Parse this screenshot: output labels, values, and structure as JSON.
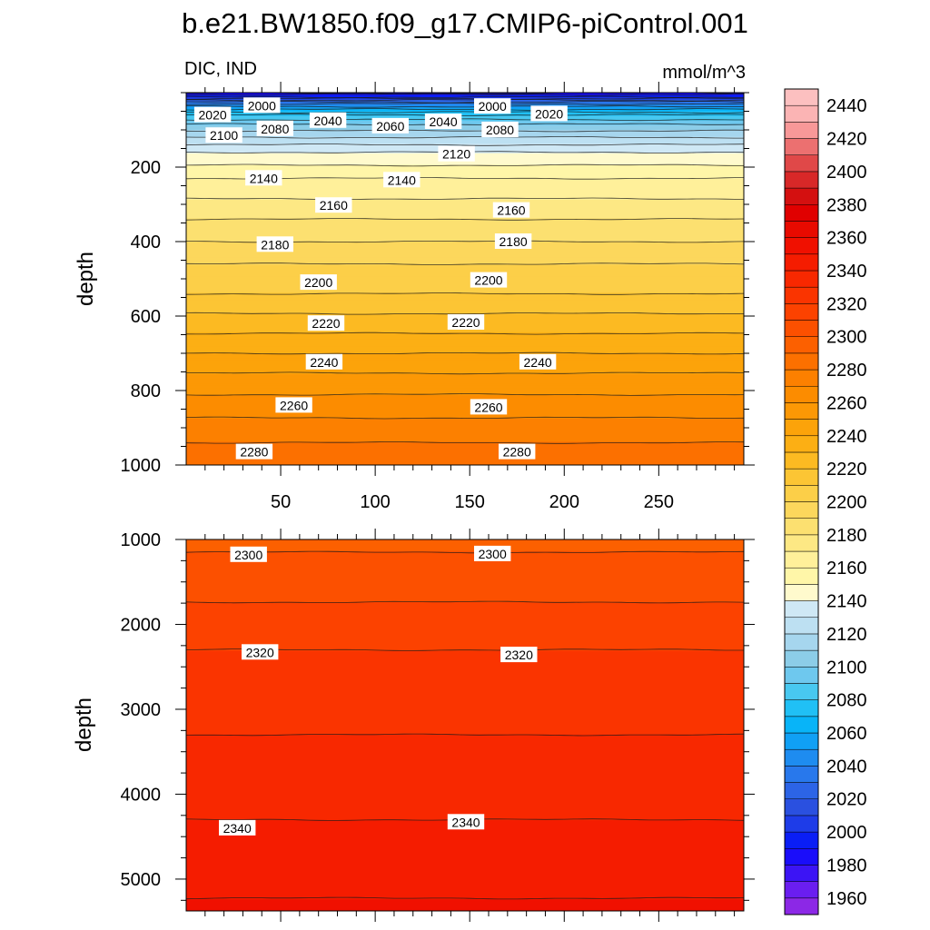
{
  "chart_data": {
    "type": "contour",
    "title": "b.e21.BW1850.f09_g17.CMIP6-piControl.001",
    "left_string": "DIC, IND",
    "right_string": "mmol/m^3",
    "xlim": [
      0,
      295
    ],
    "x_ticks": [
      "50",
      "100",
      "150",
      "200",
      "250"
    ],
    "x_tick_values": [
      50,
      100,
      150,
      200,
      250
    ],
    "panels": [
      {
        "name": "upper",
        "ylabel": "depth",
        "ylim": [
          0,
          1000
        ],
        "y_ticks": [
          "200",
          "400",
          "600",
          "800",
          "1000"
        ],
        "y_tick_values": [
          200,
          400,
          600,
          800,
          1000
        ],
        "profile": [
          [
            0,
            1975
          ],
          [
            5,
            1990
          ],
          [
            12,
            2000
          ],
          [
            20,
            2020
          ],
          [
            30,
            2040
          ],
          [
            45,
            2060
          ],
          [
            60,
            2080
          ],
          [
            85,
            2100
          ],
          [
            120,
            2120
          ],
          [
            160,
            2140
          ],
          [
            230,
            2160
          ],
          [
            340,
            2180
          ],
          [
            460,
            2200
          ],
          [
            540,
            2210
          ],
          [
            620,
            2225
          ],
          [
            700,
            2240
          ],
          [
            780,
            2255
          ],
          [
            860,
            2268
          ],
          [
            940,
            2280
          ],
          [
            1000,
            2288
          ]
        ],
        "contour_labels": [
          {
            "text": "2000",
            "x": 40,
            "y": 35
          },
          {
            "text": "2020",
            "x": 14,
            "y": 60
          },
          {
            "text": "2040",
            "x": 75,
            "y": 75
          },
          {
            "text": "2060",
            "x": 108,
            "y": 90
          },
          {
            "text": "2040",
            "x": 136,
            "y": 78
          },
          {
            "text": "2000",
            "x": 162,
            "y": 37
          },
          {
            "text": "2020",
            "x": 192,
            "y": 57
          },
          {
            "text": "2100",
            "x": 20,
            "y": 115
          },
          {
            "text": "2080",
            "x": 47,
            "y": 97
          },
          {
            "text": "2080",
            "x": 166,
            "y": 100
          },
          {
            "text": "2120",
            "x": 143,
            "y": 165
          },
          {
            "text": "2140",
            "x": 41,
            "y": 230
          },
          {
            "text": "2140",
            "x": 114,
            "y": 235
          },
          {
            "text": "2160",
            "x": 78,
            "y": 303
          },
          {
            "text": "2160",
            "x": 172,
            "y": 316
          },
          {
            "text": "2180",
            "x": 47,
            "y": 408
          },
          {
            "text": "2180",
            "x": 173,
            "y": 400
          },
          {
            "text": "2200",
            "x": 70,
            "y": 510
          },
          {
            "text": "2200",
            "x": 160,
            "y": 504
          },
          {
            "text": "2220",
            "x": 74,
            "y": 620
          },
          {
            "text": "2220",
            "x": 148,
            "y": 617
          },
          {
            "text": "2240",
            "x": 73,
            "y": 724
          },
          {
            "text": "2240",
            "x": 186,
            "y": 724
          },
          {
            "text": "2260",
            "x": 57,
            "y": 840
          },
          {
            "text": "2260",
            "x": 160,
            "y": 845
          },
          {
            "text": "2280",
            "x": 36,
            "y": 965
          },
          {
            "text": "2280",
            "x": 175,
            "y": 965
          }
        ]
      },
      {
        "name": "lower",
        "ylabel": "depth",
        "ylim": [
          1000,
          5375
        ],
        "y_ticks": [
          "1000",
          "2000",
          "3000",
          "4000",
          "5000"
        ],
        "y_tick_values": [
          1000,
          2000,
          3000,
          4000,
          5000
        ],
        "profile": [
          [
            1000,
            2292
          ],
          [
            1150,
            2300
          ],
          [
            1400,
            2304
          ],
          [
            2300,
            2320
          ],
          [
            3300,
            2330
          ],
          [
            4300,
            2340
          ],
          [
            5000,
            2347
          ],
          [
            5375,
            2352
          ]
        ],
        "contour_labels": [
          {
            "text": "2300",
            "x": 33,
            "y": 1180
          },
          {
            "text": "2300",
            "x": 162,
            "y": 1170
          },
          {
            "text": "2320",
            "x": 39,
            "y": 2330
          },
          {
            "text": "2320",
            "x": 176,
            "y": 2360
          },
          {
            "text": "2340",
            "x": 27,
            "y": 4400
          },
          {
            "text": "2340",
            "x": 148,
            "y": 4330
          }
        ]
      }
    ],
    "colorbar": {
      "levels": [
        1950,
        1960,
        1970,
        1980,
        1990,
        2000,
        2010,
        2020,
        2030,
        2040,
        2050,
        2060,
        2070,
        2080,
        2090,
        2100,
        2110,
        2120,
        2130,
        2140,
        2150,
        2160,
        2170,
        2180,
        2190,
        2200,
        2210,
        2220,
        2230,
        2240,
        2250,
        2260,
        2270,
        2280,
        2290,
        2300,
        2310,
        2320,
        2330,
        2340,
        2350,
        2360,
        2370,
        2380,
        2390,
        2400,
        2410,
        2420,
        2430,
        2440,
        2450
      ],
      "labels": [
        "1960",
        "1980",
        "2000",
        "2020",
        "2040",
        "2060",
        "2080",
        "2100",
        "2120",
        "2140",
        "2160",
        "2180",
        "2200",
        "2220",
        "2240",
        "2260",
        "2280",
        "2300",
        "2320",
        "2340",
        "2360",
        "2380",
        "2400",
        "2420",
        "2440"
      ],
      "label_values": [
        1960,
        1980,
        2000,
        2020,
        2040,
        2060,
        2080,
        2100,
        2120,
        2140,
        2160,
        2180,
        2200,
        2220,
        2240,
        2260,
        2280,
        2300,
        2320,
        2340,
        2360,
        2380,
        2400,
        2420,
        2440
      ],
      "colors": [
        "#8c28e6",
        "#6a1ef0",
        "#3c14f5",
        "#1a0dfa",
        "#0a1ef5",
        "#1e3ce8",
        "#2a50e0",
        "#2c64e6",
        "#2878ec",
        "#1e8cf0",
        "#10a0f5",
        "#08b4f8",
        "#20c0f5",
        "#48c8f0",
        "#6ec8ee",
        "#8ccde8",
        "#a6d6ee",
        "#bde0f2",
        "#cfe8f5",
        "#fffacd",
        "#fff6a8",
        "#fff09a",
        "#fde884",
        "#fce070",
        "#fcd75c",
        "#fccf48",
        "#fcc534",
        "#fcba22",
        "#fcaf14",
        "#fca30a",
        "#fc9805",
        "#fc8c00",
        "#fc8000",
        "#fc7000",
        "#fc6000",
        "#fc5000",
        "#fc4200",
        "#fa3400",
        "#f82800",
        "#f51c00",
        "#f01000",
        "#e80a00",
        "#e00000",
        "#d41010",
        "#d82828",
        "#e04848",
        "#ec7070",
        "#f89898",
        "#fbb4b4",
        "#fcc0c0"
      ]
    }
  }
}
